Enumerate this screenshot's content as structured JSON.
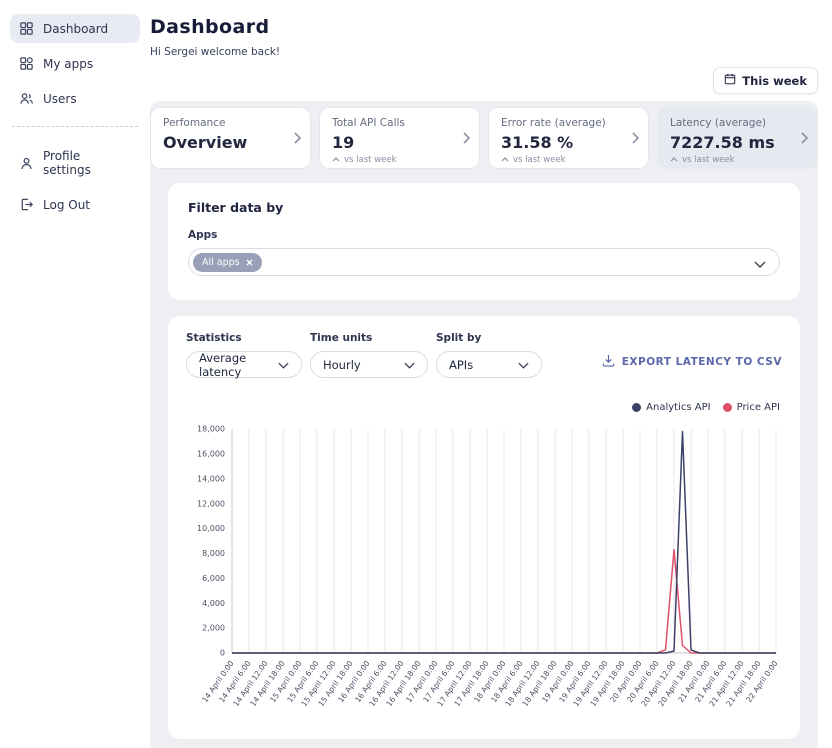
{
  "sidebar": {
    "items": [
      {
        "label": "Dashboard"
      },
      {
        "label": "My apps"
      },
      {
        "label": "Users"
      },
      {
        "label": "Profile settings"
      },
      {
        "label": "Log Out"
      }
    ]
  },
  "header": {
    "title": "Dashboard",
    "subtitle": "Hi Sergei welcome back!",
    "week_button": "This week"
  },
  "stat_cards": [
    {
      "label": "Perfomance",
      "value": "Overview"
    },
    {
      "label": "Total API Calls",
      "value": "19",
      "trend": "vs last week"
    },
    {
      "label": "Error rate (average)",
      "value": "31.58 %",
      "trend": "vs last week"
    },
    {
      "label": "Latency (average)",
      "value": "7227.58 ms",
      "trend": "vs last week"
    }
  ],
  "filter": {
    "title": "Filter data by",
    "apps_label": "Apps",
    "chip": "All apps"
  },
  "controls": {
    "statistics_label": "Statistics",
    "statistics_value": "Average latency",
    "time_units_label": "Time units",
    "time_units_value": "Hourly",
    "split_by_label": "Split by",
    "split_by_value": "APIs",
    "export_label": "EXPORT LATENCY TO CSV"
  },
  "chart_data": {
    "type": "line",
    "ylim": [
      0,
      18000
    ],
    "ytick_step": 2000,
    "grid": "vertical",
    "legend_position": "top-right",
    "x_labels": [
      "14 April 0:00",
      "14 April 6:00",
      "14 April 12:00",
      "14 April 18:00",
      "15 April 0:00",
      "15 April 6:00",
      "15 April 12:00",
      "15 April 18:00",
      "16 April 0:00",
      "16 April 6:00",
      "16 April 12:00",
      "16 April 18:00",
      "17 April 0:00",
      "17 April 6:00",
      "17 April 12:00",
      "17 April 18:00",
      "18 April 0:00",
      "18 April 6:00",
      "18 April 12:00",
      "18 April 18:00",
      "19 April 0:00",
      "19 April 6:00",
      "19 April 12:00",
      "19 April 18:00",
      "20 April 0:00",
      "20 April 6:00",
      "20 April 12:00",
      "20 April 18:00",
      "21 April 0:00",
      "21 April 6:00",
      "21 April 12:00",
      "21 April 18:00",
      "22 April 0:00"
    ],
    "series": [
      {
        "name": "Analytics API",
        "color": "#3b4266",
        "values": [
          0,
          0,
          0,
          0,
          0,
          0,
          0,
          0,
          0,
          0,
          0,
          0,
          0,
          0,
          0,
          0,
          0,
          0,
          0,
          0,
          0,
          0,
          0,
          0,
          0,
          0,
          0,
          0,
          0,
          0,
          0,
          0,
          0,
          0,
          0,
          0,
          0,
          0,
          0,
          0,
          0,
          0,
          0,
          0,
          0,
          0,
          0,
          0,
          0,
          0,
          0,
          0,
          150,
          17800,
          250,
          0,
          0,
          0,
          0,
          0,
          0,
          0,
          0,
          0,
          0
        ]
      },
      {
        "name": "Price API",
        "color": "#e0506a",
        "values": [
          0,
          0,
          0,
          0,
          0,
          0,
          0,
          0,
          0,
          0,
          0,
          0,
          0,
          0,
          0,
          0,
          0,
          0,
          0,
          0,
          0,
          0,
          0,
          0,
          0,
          0,
          0,
          0,
          0,
          0,
          0,
          0,
          0,
          0,
          0,
          0,
          0,
          0,
          0,
          0,
          0,
          0,
          0,
          0,
          0,
          0,
          0,
          0,
          0,
          0,
          0,
          250,
          8300,
          600,
          0,
          0,
          0,
          0,
          0,
          0,
          0,
          0,
          0,
          0,
          0
        ]
      }
    ]
  }
}
